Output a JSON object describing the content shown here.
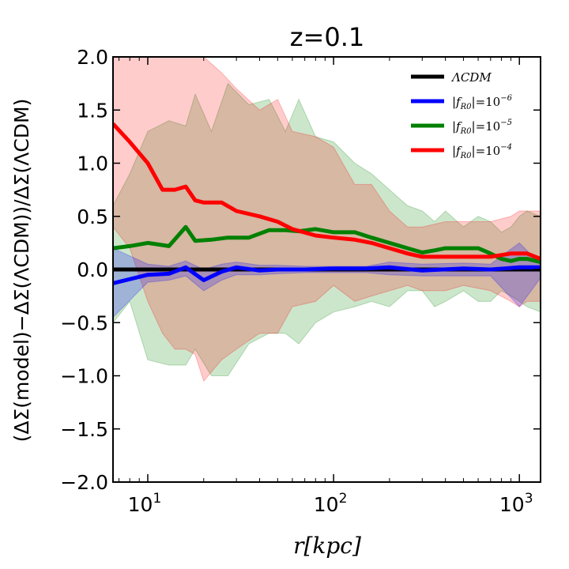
{
  "chart_data": {
    "type": "line",
    "title": "z=0.1",
    "xlabel": "r[kpc]",
    "ylabel": "(ΔΣ(model)−ΔΣ(ΛCDM))/ΔΣ(ΛCDM)",
    "xscale": "log",
    "xlim": [
      6.5,
      1300
    ],
    "ylim": [
      -2.0,
      2.0
    ],
    "yticks": [
      -2.0,
      -1.5,
      -1.0,
      -0.5,
      0.0,
      0.5,
      1.0,
      1.5,
      2.0
    ],
    "ytick_labels": [
      "−2.0",
      "−1.5",
      "−1.0",
      "−0.5",
      "0.0",
      "0.5",
      "1.0",
      "1.5",
      "2.0"
    ],
    "xticks": [
      {
        "value": 10,
        "base": "10",
        "exp": "1"
      },
      {
        "value": 100,
        "base": "10",
        "exp": "2"
      },
      {
        "value": 1000,
        "base": "10",
        "exp": "3"
      }
    ],
    "legend_position": "top-right",
    "series": [
      {
        "name": "ΛCDM",
        "legend_label": "ΛCDM",
        "color": "#000000",
        "x": [
          6.5,
          1300
        ],
        "y": [
          0.0,
          0.0
        ]
      },
      {
        "name": "|f_R0|=10^-6",
        "legend_label": "|f",
        "legend_sub": "R0",
        "legend_eq": "|=10",
        "legend_exp": "−6",
        "color": "#0000ff",
        "fill": "rgba(0,0,255,0.22)",
        "x": [
          6.5,
          10,
          13,
          16,
          20,
          25,
          30,
          40,
          50,
          70,
          100,
          150,
          200,
          300,
          500,
          700,
          1000,
          1300
        ],
        "y": [
          -0.13,
          -0.05,
          -0.04,
          0.02,
          -0.1,
          -0.02,
          0.02,
          -0.01,
          0.0,
          0.0,
          0.01,
          0.01,
          0.02,
          -0.01,
          0.01,
          0.0,
          0.02,
          0.02
        ],
        "upper": [
          0.2,
          0.05,
          0.03,
          0.08,
          0.0,
          0.05,
          0.07,
          0.04,
          0.04,
          0.03,
          0.03,
          0.03,
          0.07,
          0.05,
          0.06,
          0.05,
          0.25,
          0.05
        ],
        "lower": [
          -0.45,
          -0.12,
          -0.1,
          -0.06,
          -0.2,
          -0.1,
          -0.05,
          -0.05,
          -0.04,
          -0.03,
          -0.03,
          -0.03,
          -0.05,
          -0.06,
          -0.06,
          -0.06,
          -0.35,
          -0.08
        ]
      },
      {
        "name": "|f_R0|=10^-5",
        "legend_label": "|f",
        "legend_sub": "R0",
        "legend_eq": "|=10",
        "legend_exp": "−5",
        "color": "#008000",
        "fill": "rgba(0,128,0,0.2)",
        "x": [
          6.5,
          8,
          10,
          13,
          16,
          18,
          22,
          27,
          35,
          45,
          55,
          65,
          80,
          100,
          130,
          160,
          200,
          250,
          300,
          350,
          400,
          500,
          600,
          700,
          800,
          900,
          1000,
          1100,
          1300
        ],
        "y": [
          0.2,
          0.22,
          0.25,
          0.22,
          0.4,
          0.27,
          0.28,
          0.3,
          0.3,
          0.37,
          0.37,
          0.36,
          0.38,
          0.35,
          0.35,
          0.3,
          0.25,
          0.2,
          0.16,
          0.18,
          0.2,
          0.2,
          0.2,
          0.15,
          0.1,
          0.08,
          0.1,
          0.1,
          0.07
        ],
        "upper": [
          0.6,
          0.9,
          1.3,
          1.4,
          1.35,
          1.65,
          1.3,
          1.75,
          1.55,
          1.6,
          1.3,
          1.6,
          1.25,
          1.2,
          1.0,
          0.9,
          0.75,
          0.6,
          0.55,
          0.45,
          0.55,
          0.4,
          0.5,
          0.45,
          0.35,
          0.4,
          0.5,
          0.55,
          0.5
        ],
        "lower": [
          -0.5,
          -0.3,
          -0.85,
          -0.9,
          -0.9,
          -0.75,
          -1.0,
          -1.0,
          -0.7,
          -0.6,
          -0.6,
          -0.7,
          -0.5,
          -0.4,
          -0.35,
          -0.3,
          -0.35,
          -0.2,
          -0.2,
          -0.35,
          -0.3,
          -0.2,
          -0.3,
          -0.3,
          -0.2,
          -0.25,
          -0.3,
          -0.35,
          -0.4
        ]
      },
      {
        "name": "|f_R0|=10^-4",
        "legend_label": "|f",
        "legend_sub": "R0",
        "legend_eq": "|=10",
        "legend_exp": "−4",
        "color": "#ff0000",
        "fill": "rgba(255,0,0,0.2)",
        "x": [
          6.5,
          8,
          10,
          12,
          14,
          16,
          18,
          20,
          25,
          30,
          40,
          50,
          60,
          80,
          100,
          130,
          160,
          200,
          250,
          300,
          400,
          500,
          700,
          900,
          1000,
          1100,
          1300
        ],
        "y": [
          1.37,
          1.2,
          1.0,
          0.75,
          0.75,
          0.78,
          0.65,
          0.63,
          0.63,
          0.55,
          0.5,
          0.45,
          0.38,
          0.32,
          0.3,
          0.28,
          0.25,
          0.2,
          0.15,
          0.12,
          0.12,
          0.12,
          0.12,
          0.15,
          0.15,
          0.15,
          0.1
        ],
        "upper": [
          2.0,
          2.0,
          2.0,
          2.0,
          2.0,
          2.0,
          2.0,
          2.0,
          1.85,
          1.7,
          1.5,
          1.6,
          1.3,
          1.25,
          1.15,
          0.8,
          0.8,
          0.55,
          0.4,
          0.4,
          0.45,
          0.45,
          0.45,
          0.5,
          0.55,
          0.55,
          0.55
        ],
        "lower": [
          0.4,
          0.2,
          -0.3,
          -0.6,
          -0.75,
          -0.75,
          -0.8,
          -1.05,
          -0.85,
          -0.75,
          -0.6,
          -0.6,
          -0.35,
          -0.3,
          -0.15,
          -0.3,
          -0.25,
          -0.2,
          -0.15,
          -0.2,
          -0.2,
          -0.15,
          -0.2,
          -0.3,
          -0.35,
          -0.3,
          -0.3
        ]
      }
    ]
  }
}
